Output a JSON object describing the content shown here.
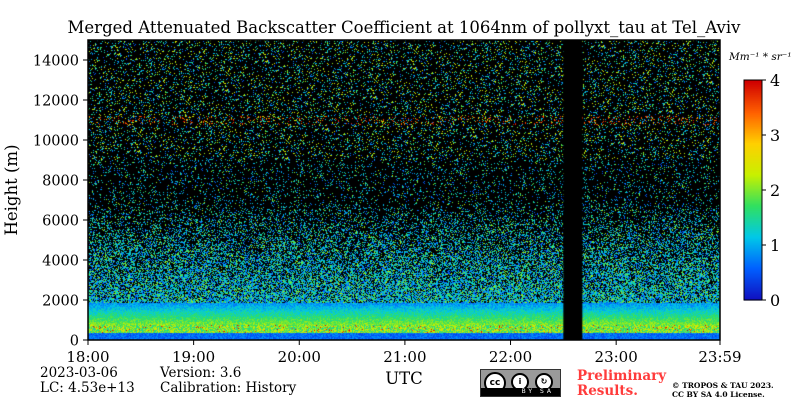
{
  "chart_data": {
    "type": "heatmap",
    "title": "Merged Attenuated Backscatter Coefficient at 1064nm of pollyxt_tau at Tel_Aviv",
    "xlabel": "UTC",
    "ylabel": "Height (m)",
    "x_tick_labels": [
      "18:00",
      "19:00",
      "20:00",
      "21:00",
      "22:00",
      "23:00",
      "23:59"
    ],
    "x_range_hours": [
      18.0,
      23.983
    ],
    "y_ticks": [
      0,
      2000,
      4000,
      6000,
      8000,
      10000,
      12000,
      14000
    ],
    "y_tick_labels": [
      "0",
      "2000",
      "4000",
      "6000",
      "8000",
      "10000",
      "12000",
      "14000"
    ],
    "ylim": [
      0,
      15000
    ],
    "colorbar": {
      "unit_label": "Mm⁻¹ * sr⁻¹",
      "ticks": [
        0,
        1,
        2,
        3,
        4
      ],
      "tick_labels": [
        "0",
        "1",
        "2",
        "3",
        "4"
      ],
      "range": [
        0,
        4
      ],
      "colormap": [
        "#1010c0",
        "#0060ff",
        "#00c8e8",
        "#30e060",
        "#c8f000",
        "#ffd000",
        "#ff6000",
        "#d00000"
      ]
    },
    "no_data_intervals_hours": [
      [
        22.5,
        22.68
      ]
    ],
    "boundary_layer_top_m": 1900,
    "cloud_layer_height_m": 11000,
    "background_color": "#000000"
  },
  "footer": {
    "date": "2023-03-06",
    "lc": "LC: 4.53e+13",
    "version": "Version: 3.6",
    "calibration": "Calibration: History",
    "utc_label": "UTC",
    "preliminary": "Preliminary\nResults.",
    "copyright": "© TROPOS & TAU 2023.\nCC BY SA 4.0 License.",
    "cc_badge": "BY  SA"
  }
}
